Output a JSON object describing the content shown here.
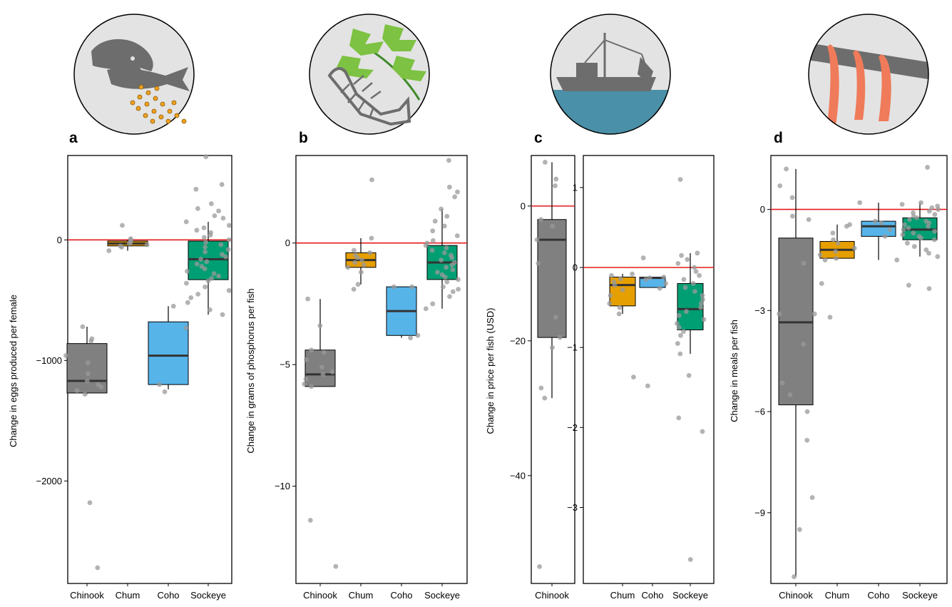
{
  "panels": [
    {
      "label": "a",
      "icon": "fish-eggs-icon",
      "ylabel": "Change in eggs produced per female"
    },
    {
      "label": "b",
      "icon": "plant-fish-skeleton-icon",
      "ylabel": "Change in grams of phosphorus per fish"
    },
    {
      "label": "c",
      "icon": "fishing-boat-icon",
      "ylabel": "Change in price per fish (USD)"
    },
    {
      "label": "d",
      "icon": "salmon-strips-icon",
      "ylabel": "Change in meals per fish"
    }
  ],
  "colors": {
    "Chinook": "#808080",
    "Chum": "#E69F00",
    "Coho": "#56B4E9",
    "Sockeye": "#009E73",
    "reference_line": "#e41a1c",
    "points": "#999999"
  },
  "chart_data": [
    {
      "type": "box",
      "panel": "a",
      "ylabel": "Change in eggs produced per female",
      "ylim": [
        -2850,
        700
      ],
      "yticks": [
        0,
        -1000,
        -2000
      ],
      "ytick_labels": [
        "0",
        "−1000",
        "−2000"
      ],
      "reference_line": 0,
      "categories": [
        "Chinook",
        "Chum",
        "Coho",
        "Sockeye"
      ],
      "boxes": [
        {
          "name": "Chinook",
          "q1": -1270,
          "median": -1170,
          "q3": -860,
          "whisker_low": -1280,
          "whisker_high": -720
        },
        {
          "name": "Chum",
          "q1": -50,
          "median": -30,
          "q3": -10,
          "whisker_low": -90,
          "whisker_high": 0
        },
        {
          "name": "Coho",
          "q1": -1200,
          "median": -960,
          "q3": -680,
          "whisker_low": -1240,
          "whisker_high": -550
        },
        {
          "name": "Sockeye",
          "q1": -330,
          "median": -160,
          "q3": -10,
          "whisker_low": -620,
          "whisker_high": 150
        }
      ],
      "points": {
        "Chinook": [
          -2720,
          -2180,
          -1280,
          -1250,
          -1220,
          -1200,
          -1170,
          -1110,
          -1020,
          -960,
          -840,
          -820,
          -720
        ],
        "Chum": [
          -90,
          -60,
          -50,
          -40,
          -30,
          -20,
          -10,
          0,
          10,
          120
        ],
        "Coho": [
          -1260,
          -1200,
          -730,
          -550
        ],
        "Sockeye": [
          -620,
          -580,
          -520,
          -480,
          -450,
          -420,
          -390,
          -360,
          -340,
          -320,
          -300,
          -280,
          -260,
          -240,
          -220,
          -200,
          -180,
          -160,
          -140,
          -120,
          -100,
          -80,
          -60,
          -40,
          -20,
          0,
          20,
          40,
          60,
          80,
          100,
          120,
          150,
          180,
          200,
          240,
          260,
          300,
          420,
          460,
          690
        ]
      }
    },
    {
      "type": "box",
      "panel": "b",
      "ylabel": "Change in grams of phosphorus per fish",
      "ylim": [
        -14,
        3.6
      ],
      "yticks": [
        0,
        -5,
        -10
      ],
      "ytick_labels": [
        "0",
        "−5",
        "−10"
      ],
      "reference_line": 0,
      "categories": [
        "Chinook",
        "Chum",
        "Coho",
        "Sockeye"
      ],
      "boxes": [
        {
          "name": "Chinook",
          "q1": -5.9,
          "median": -5.4,
          "q3": -4.4,
          "whisker_low": -5.9,
          "whisker_high": -2.3
        },
        {
          "name": "Chum",
          "q1": -1.0,
          "median": -0.7,
          "q3": -0.4,
          "whisker_low": -1.7,
          "whisker_high": 0.2
        },
        {
          "name": "Coho",
          "q1": -3.8,
          "median": -2.8,
          "q3": -1.8,
          "whisker_low": -3.9,
          "whisker_high": -1.8
        },
        {
          "name": "Sockeye",
          "q1": -1.5,
          "median": -0.8,
          "q3": -0.1,
          "whisker_low": -2.7,
          "whisker_high": 1.4
        }
      ],
      "points": {
        "Chinook": [
          -13.3,
          -11.4,
          -5.9,
          -5.8,
          -5.6,
          -5.4,
          -5.3,
          -5.1,
          -4.8,
          -4.5,
          -4.4,
          -3.4,
          -2.3
        ],
        "Chum": [
          -1.9,
          -1.7,
          -1.2,
          -1.0,
          -0.9,
          -0.8,
          -0.7,
          -0.6,
          -0.5,
          -0.4,
          -0.3,
          0.2,
          2.6
        ],
        "Coho": [
          -3.9,
          -3.8,
          -1.8,
          -1.8
        ],
        "Sockeye": [
          -2.7,
          -2.5,
          -2.2,
          -2.0,
          -1.9,
          -1.8,
          -1.6,
          -1.5,
          -1.4,
          -1.3,
          -1.2,
          -1.1,
          -1.0,
          -0.9,
          -0.8,
          -0.7,
          -0.6,
          -0.5,
          -0.4,
          -0.3,
          -0.2,
          -0.1,
          0.0,
          0.1,
          0.3,
          0.5,
          0.7,
          0.9,
          1.1,
          1.4,
          1.9,
          2.1,
          2.3,
          3.4
        ]
      }
    },
    {
      "type": "box",
      "panel": "c-left",
      "ylabel": "Change in price per fish (USD)",
      "ylim": [
        -56,
        7.5
      ],
      "yticks": [
        0,
        -20,
        -40
      ],
      "ytick_labels": [
        "0",
        "−20",
        "−40"
      ],
      "reference_line": 0,
      "categories": [
        "Chinook"
      ],
      "boxes": [
        {
          "name": "Chinook",
          "q1": -19.5,
          "median": -5,
          "q3": -2,
          "whisker_low": -28.5,
          "whisker_high": 6.5
        }
      ],
      "points": {
        "Chinook": [
          -53.5,
          -28.5,
          -27,
          -21,
          -19.5,
          -16.5,
          -8.5,
          -5,
          -3,
          -2,
          3,
          4,
          6.5
        ]
      }
    },
    {
      "type": "box",
      "panel": "c-right",
      "ylabel": "",
      "ylim": [
        -3.95,
        1.4
      ],
      "yticks": [
        1,
        0,
        -1,
        -2,
        -3
      ],
      "ytick_labels": [
        "1",
        "0",
        "−1",
        "−2",
        "−3"
      ],
      "reference_line": 0,
      "categories": [
        "Chum",
        "Coho",
        "Sockeye"
      ],
      "boxes": [
        {
          "name": "Chum",
          "q1": -0.48,
          "median": -0.22,
          "q3": -0.12,
          "whisker_low": -0.58,
          "whisker_high": -0.08
        },
        {
          "name": "Coho",
          "q1": -0.25,
          "median": -0.13,
          "q3": -0.12,
          "whisker_low": -0.25,
          "whisker_high": -0.12
        },
        {
          "name": "Sockeye",
          "q1": -0.78,
          "median": -0.52,
          "q3": -0.2,
          "whisker_low": -1.08,
          "whisker_high": 0.18
        }
      ],
      "points": {
        "Chum": [
          -1.37,
          -0.58,
          -0.5,
          -0.45,
          -0.35,
          -0.28,
          -0.22,
          -0.18,
          -0.14,
          -0.1,
          -0.08
        ],
        "Coho": [
          -1.48,
          -0.26,
          -0.2,
          -0.15,
          -0.13,
          -0.12,
          0.12
        ],
        "Sockeye": [
          -3.65,
          -2.05,
          -1.88,
          -1.35,
          -1.08,
          -0.95,
          -0.85,
          -0.8,
          -0.75,
          -0.7,
          -0.65,
          -0.6,
          -0.55,
          -0.5,
          -0.45,
          -0.4,
          -0.35,
          -0.3,
          -0.25,
          -0.2,
          -0.15,
          -0.1,
          -0.05,
          0.0,
          0.05,
          0.1,
          0.15,
          0.18,
          1.1
        ]
      }
    },
    {
      "type": "box",
      "panel": "d",
      "ylabel": "Change in meals per fish",
      "ylim": [
        -11.1,
        1.6
      ],
      "yticks": [
        0,
        -3,
        -6,
        -9
      ],
      "ytick_labels": [
        "0",
        "−3",
        "−6",
        "−9"
      ],
      "reference_line": 0,
      "categories": [
        "Chinook",
        "Chum",
        "Coho",
        "Sockeye"
      ],
      "boxes": [
        {
          "name": "Chinook",
          "q1": -5.8,
          "median": -3.35,
          "q3": -0.85,
          "whisker_low": -10.9,
          "whisker_high": 1.2
        },
        {
          "name": "Chum",
          "q1": -1.45,
          "median": -1.2,
          "q3": -0.95,
          "whisker_low": -1.5,
          "whisker_high": -0.45
        },
        {
          "name": "Coho",
          "q1": -0.8,
          "median": -0.5,
          "q3": -0.35,
          "whisker_low": -1.5,
          "whisker_high": 0.2
        },
        {
          "name": "Sockeye",
          "q1": -0.9,
          "median": -0.6,
          "q3": -0.25,
          "whisker_low": -1.4,
          "whisker_high": 0.2
        }
      ],
      "points": {
        "Chinook": [
          -10.9,
          -9.5,
          -8.55,
          -6.85,
          -6.0,
          -5.5,
          -5.15,
          -4.0,
          -3.1,
          -3.1,
          -1.6,
          -0.3,
          -0.2,
          0.35,
          0.7,
          1.2
        ],
        "Chum": [
          -3.2,
          -2.2,
          -1.5,
          -1.45,
          -1.35,
          -1.25,
          -1.15,
          -1.0,
          -0.9,
          -0.7,
          -0.5,
          -0.45
        ],
        "Coho": [
          -1.5,
          -0.8,
          -0.6,
          -0.4,
          -0.35,
          0.2
        ],
        "Sockeye": [
          -2.35,
          -2.25,
          -1.4,
          -1.3,
          -1.2,
          -1.1,
          -1.0,
          -0.9,
          -0.85,
          -0.8,
          -0.75,
          -0.7,
          -0.65,
          -0.6,
          -0.55,
          -0.5,
          -0.45,
          -0.4,
          -0.35,
          -0.3,
          -0.25,
          -0.2,
          -0.15,
          -0.1,
          -0.05,
          0.0,
          0.05,
          0.1,
          0.15,
          0.2,
          1.25
        ]
      }
    }
  ]
}
